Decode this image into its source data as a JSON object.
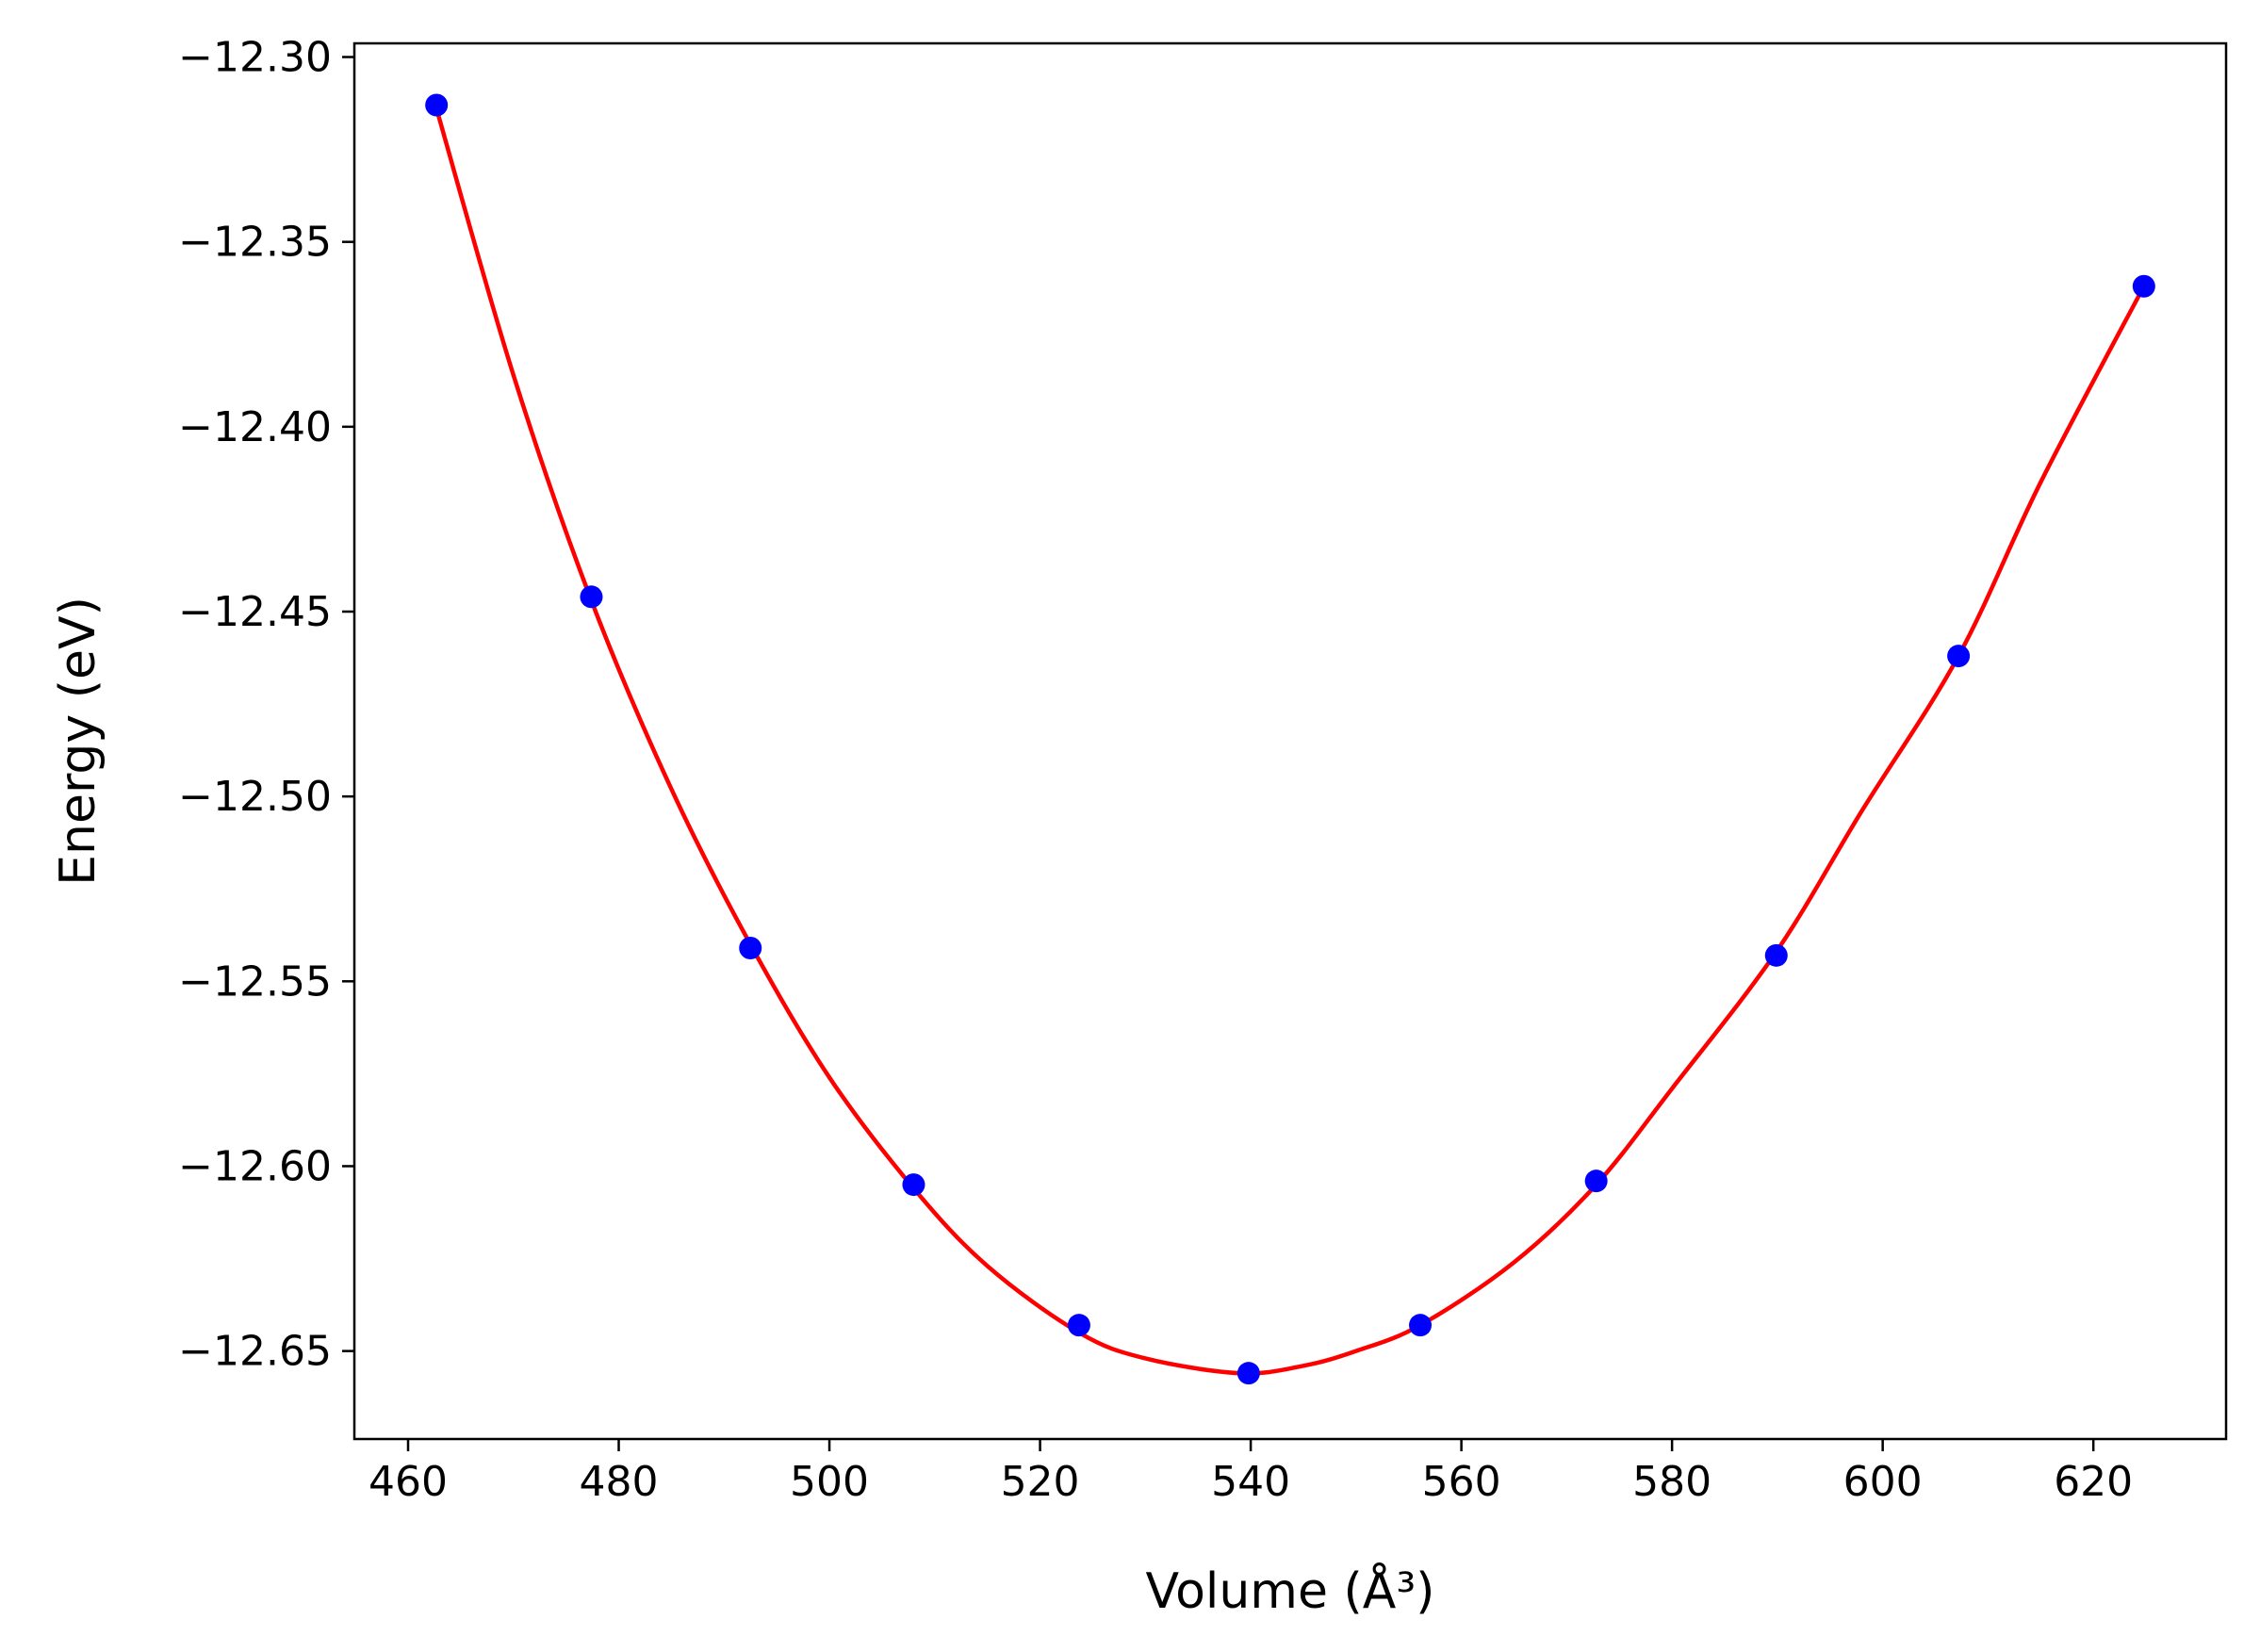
{
  "chart_data": {
    "type": "scatter",
    "title": "",
    "xlabel": "Volume (Å³)",
    "ylabel": "Energy (eV)",
    "xlim": [
      454.9,
      632.6
    ],
    "ylim": [
      -12.6738,
      -12.2963
    ],
    "xticks": [
      460,
      480,
      500,
      520,
      540,
      560,
      580,
      600,
      620
    ],
    "xtick_labels": [
      "460",
      "480",
      "500",
      "520",
      "540",
      "560",
      "580",
      "600",
      "620"
    ],
    "yticks": [
      -12.3,
      -12.35,
      -12.4,
      -12.45,
      -12.5,
      -12.55,
      -12.6,
      -12.65
    ],
    "ytick_labels": [
      "−12.30",
      "−12.35",
      "−12.40",
      "−12.45",
      "−12.50",
      "−12.55",
      "−12.60",
      "−12.65"
    ],
    "grid": false,
    "series": [
      {
        "kind": "points",
        "color": "#0000ff",
        "x": [
          462.7,
          477.4,
          492.5,
          508.0,
          523.7,
          539.8,
          556.1,
          572.8,
          589.9,
          607.2,
          624.8
        ],
        "y": [
          -12.313,
          -12.446,
          -12.541,
          -12.605,
          -12.643,
          -12.656,
          -12.643,
          -12.604,
          -12.543,
          -12.462,
          -12.362
        ]
      },
      {
        "kind": "fit-line",
        "color": "#ff0000",
        "x": [
          462.7,
          470,
          477.4,
          485,
          492.5,
          500,
          508.0,
          515,
          523.7,
          530,
          539.0,
          545,
          550,
          556.1,
          565,
          572.8,
          580,
          589.9,
          598,
          607.2,
          615,
          624.8
        ],
        "y": [
          -12.314,
          -12.386,
          -12.447,
          -12.498,
          -12.54,
          -12.576,
          -12.606,
          -12.627,
          -12.645,
          -12.652,
          -12.656,
          -12.654,
          -12.65,
          -12.643,
          -12.626,
          -12.605,
          -12.579,
          -12.542,
          -12.504,
          -12.462,
          -12.415,
          -12.362
        ]
      }
    ]
  }
}
